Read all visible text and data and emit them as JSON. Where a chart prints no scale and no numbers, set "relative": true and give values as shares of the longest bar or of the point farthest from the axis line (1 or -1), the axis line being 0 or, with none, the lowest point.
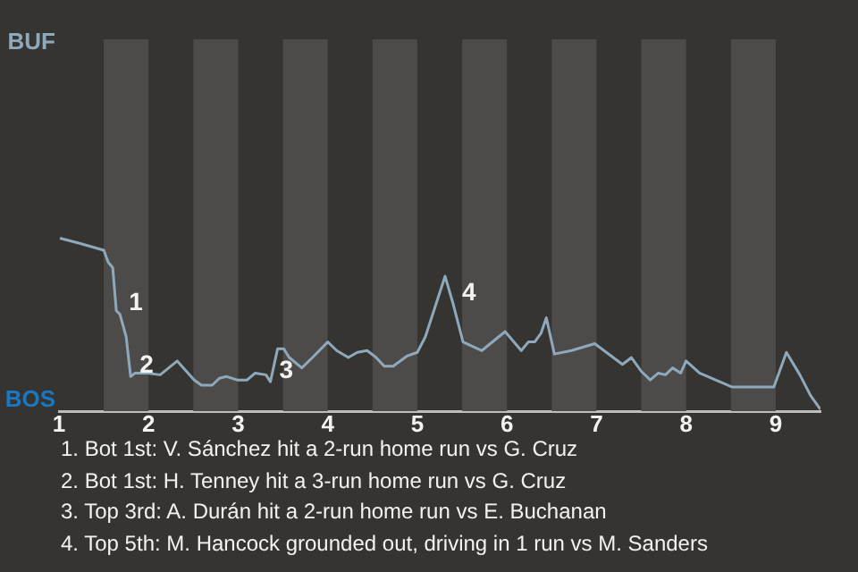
{
  "chart_data": {
    "type": "line",
    "relative": true,
    "x": [
      1.01,
      1.23,
      1.5,
      1.55,
      1.6,
      1.64,
      1.68,
      1.75,
      1.8,
      1.85,
      1.91,
      1.99,
      2.13,
      2.32,
      2.51,
      2.59,
      2.71,
      2.79,
      2.87,
      2.99,
      3.1,
      3.19,
      3.31,
      3.36,
      3.44,
      3.51,
      3.57,
      3.71,
      3.83,
      4,
      4.1,
      4.23,
      4.33,
      4.44,
      4.54,
      4.63,
      4.73,
      4.89,
      5,
      5.09,
      5.31,
      5.4,
      5.51,
      5.72,
      5.98,
      6.16,
      6.24,
      6.31,
      6.38,
      6.44,
      6.53,
      6.72,
      6.98,
      7.11,
      7.29,
      7.39,
      7.5,
      7.6,
      7.69,
      7.77,
      7.85,
      7.94,
      8,
      8.15,
      8.51,
      8.72,
      8.98,
      9.12,
      9.27,
      9.39,
      9.5
    ],
    "series": [
      {
        "color": "#8fa9bc",
        "values": [
          1.0,
          0.97,
          0.93,
          0.86,
          0.83,
          0.58,
          0.56,
          0.43,
          0.2,
          0.22,
          0.22,
          0.22,
          0.21,
          0.29,
          0.18,
          0.15,
          0.15,
          0.19,
          0.2,
          0.18,
          0.18,
          0.22,
          0.21,
          0.17,
          0.36,
          0.36,
          0.31,
          0.25,
          0.31,
          0.4,
          0.35,
          0.31,
          0.34,
          0.35,
          0.31,
          0.26,
          0.26,
          0.32,
          0.34,
          0.43,
          0.78,
          0.62,
          0.4,
          0.35,
          0.46,
          0.35,
          0.4,
          0.4,
          0.45,
          0.54,
          0.33,
          0.35,
          0.39,
          0.34,
          0.27,
          0.31,
          0.23,
          0.18,
          0.22,
          0.21,
          0.25,
          0.22,
          0.29,
          0.22,
          0.14,
          0.14,
          0.14,
          0.34,
          0.21,
          0.09,
          0.01
        ],
        "marker": "none"
      }
    ],
    "xlim": [
      1,
      9.5
    ],
    "xticks": [
      1,
      2,
      3,
      4,
      5,
      6,
      7,
      8,
      9
    ],
    "legend": false,
    "bands": [
      {
        "axis": "x",
        "from": 1.5,
        "to": 2,
        "color": "#4d4b49"
      },
      {
        "axis": "x",
        "from": 2.5,
        "to": 3,
        "color": "#4d4b49"
      },
      {
        "axis": "x",
        "from": 3.5,
        "to": 4,
        "color": "#4d4b49"
      },
      {
        "axis": "x",
        "from": 4.5,
        "to": 5,
        "color": "#4d4b49"
      },
      {
        "axis": "x",
        "from": 5.5,
        "to": 6,
        "color": "#4d4b49"
      },
      {
        "axis": "x",
        "from": 6.5,
        "to": 7,
        "color": "#4d4b49"
      },
      {
        "axis": "x",
        "from": 7.5,
        "to": 8,
        "color": "#4d4b49"
      },
      {
        "axis": "x",
        "from": 8.5,
        "to": 9,
        "color": "#4d4b49"
      }
    ],
    "annotations": [
      "BUF",
      "BOS",
      {
        "text": "1",
        "x": 1.68,
        "y": 0.56
      },
      {
        "text": "2",
        "x": 1.8,
        "y": 0.2
      },
      {
        "text": "3",
        "x": 3.36,
        "y": 0.17
      },
      {
        "text": "4",
        "x": 5.4,
        "y": 0.62
      },
      "1. Bot 1st: V. Sánchez hit a 2-run home run vs G. Cruz",
      "2. Bot 1st: H. Tenney hit a 3-run home run vs G. Cruz",
      "3. Top 3rd: A. Durán hit a 2-run home run vs E. Buchanan",
      "4. Top 5th: M. Hancock grounded out, driving in 1 run vs M. Sanders"
    ]
  }
}
